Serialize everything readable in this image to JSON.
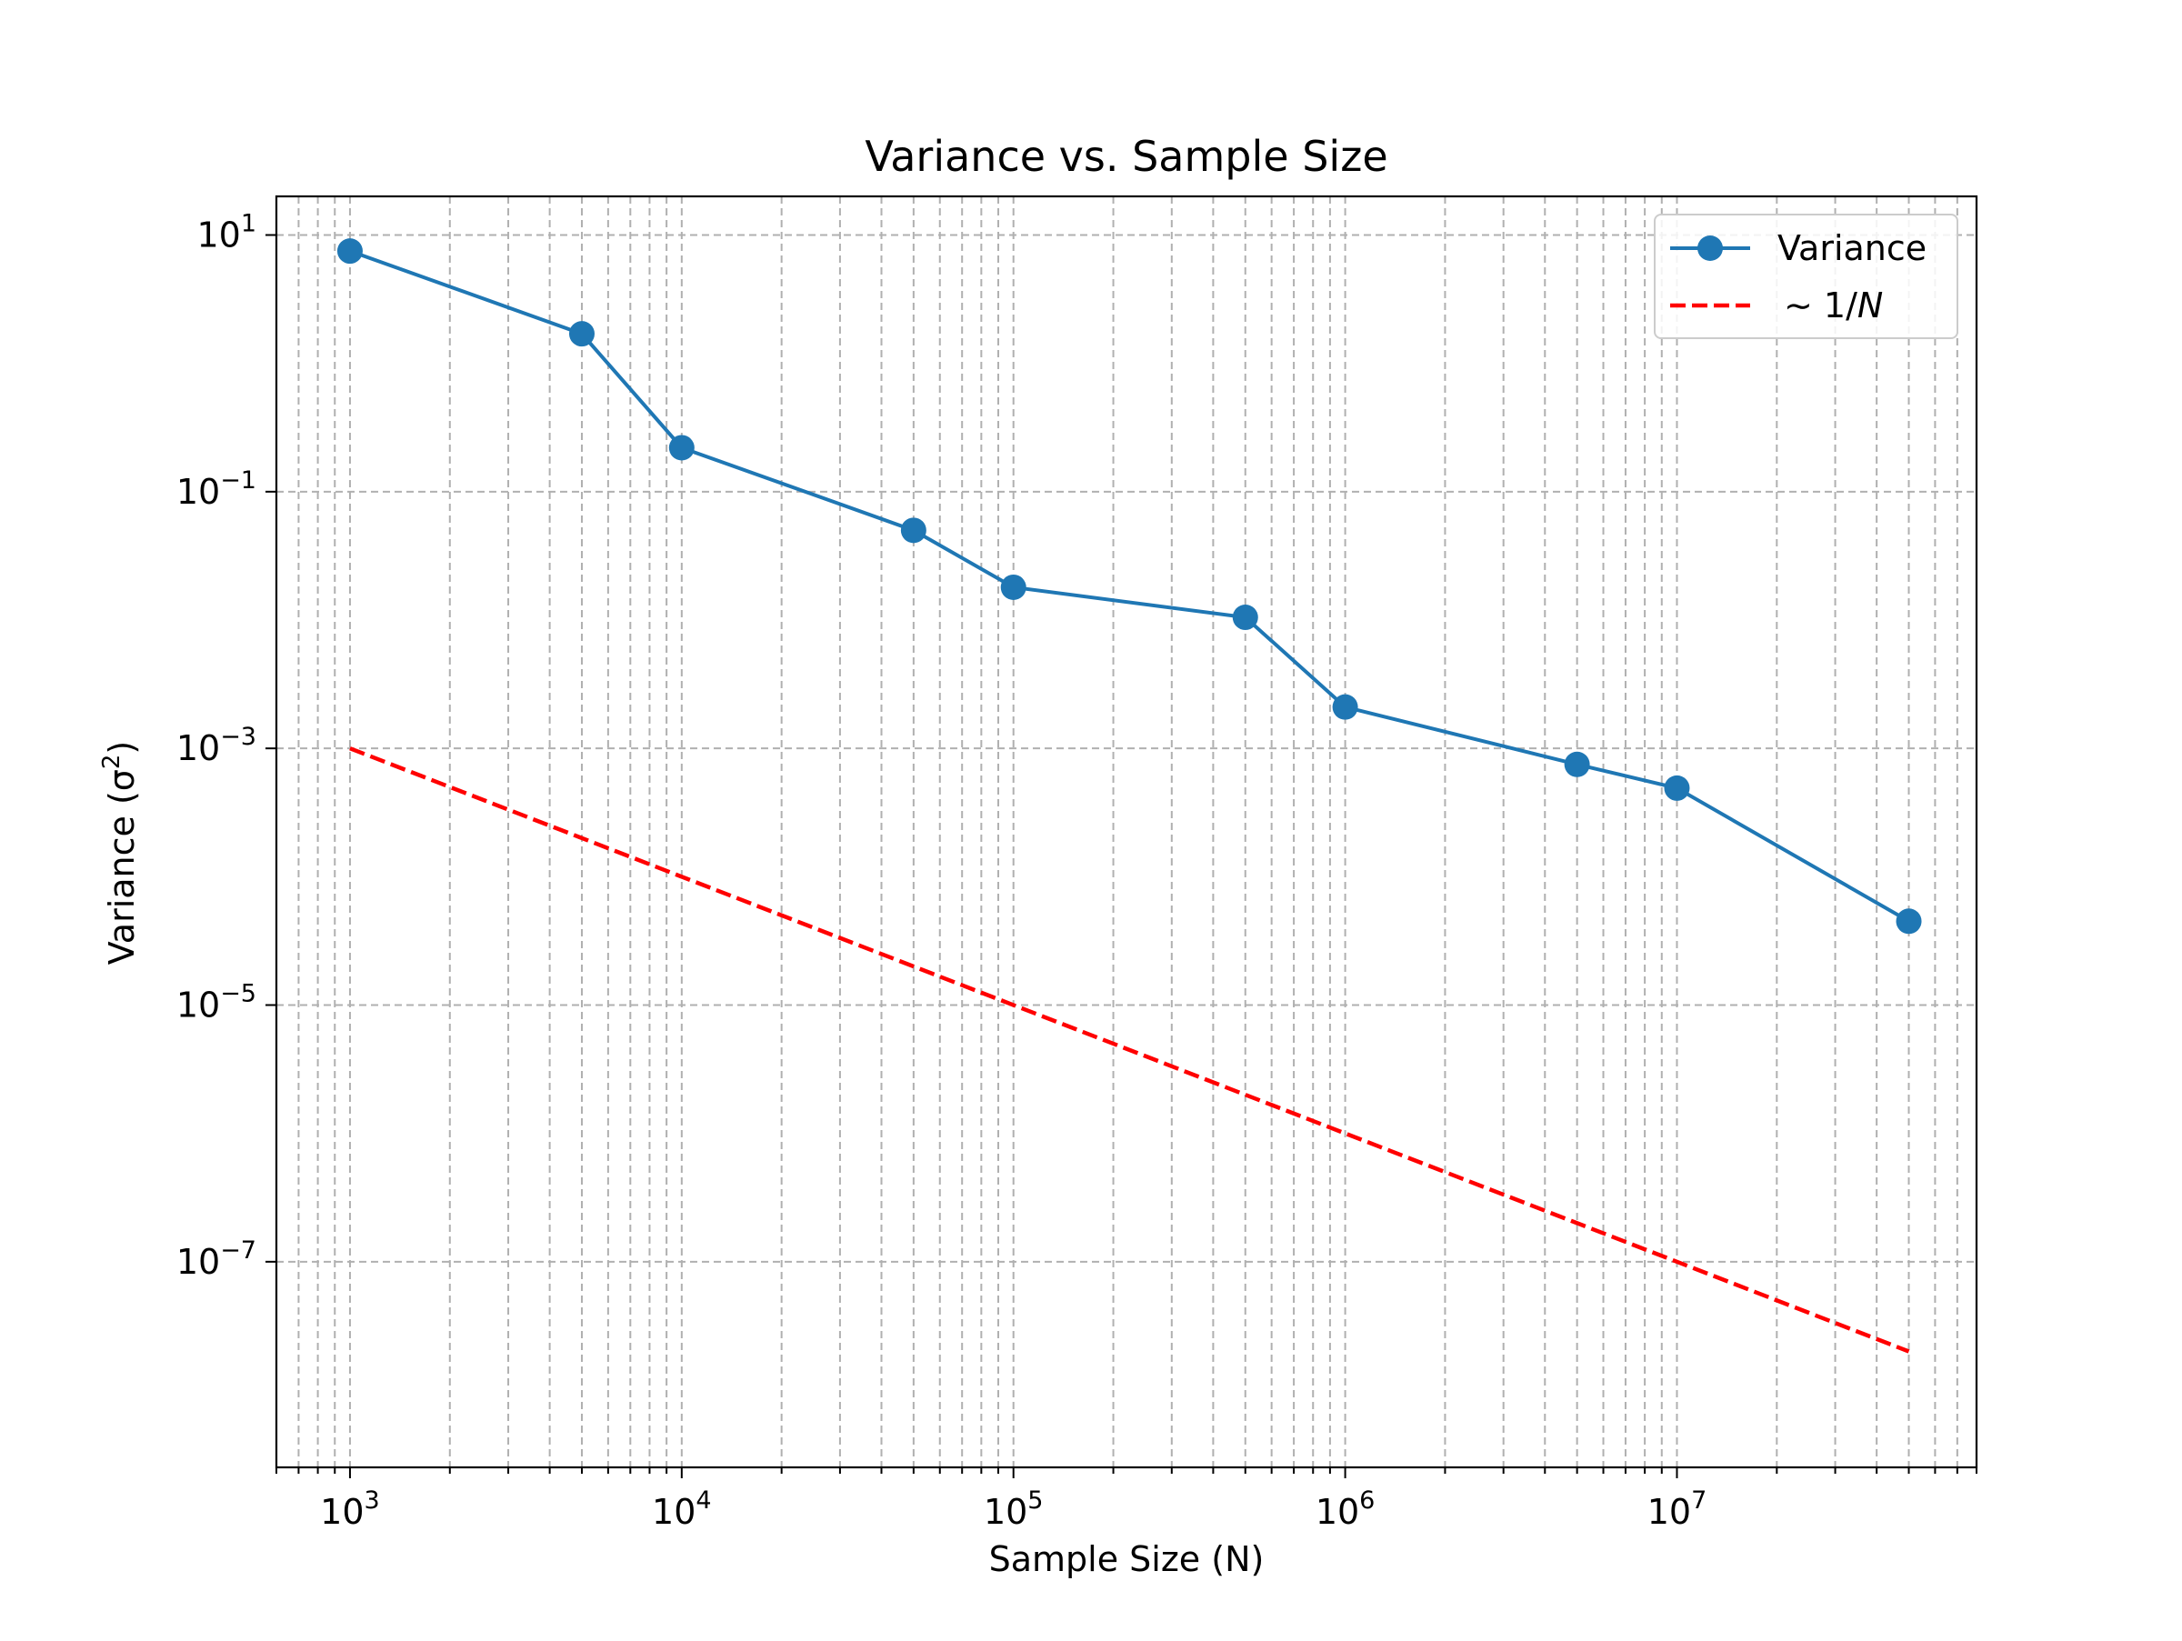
{
  "chart_data": {
    "type": "line",
    "title": "Variance vs. Sample Size",
    "xlabel": "Sample Size (N)",
    "ylabel_main": "Variance (σ",
    "ylabel_sup": "2",
    "ylabel_close": ")",
    "xscale": "log",
    "yscale": "log",
    "xlim": [
      600,
      80000000
    ],
    "ylim": [
      2.5e-09,
      20
    ],
    "x_ticks": [
      {
        "value": 1000,
        "base": "10",
        "exp": "3"
      },
      {
        "value": 10000,
        "base": "10",
        "exp": "4"
      },
      {
        "value": 100000,
        "base": "10",
        "exp": "5"
      },
      {
        "value": 1000000,
        "base": "10",
        "exp": "6"
      },
      {
        "value": 10000000,
        "base": "10",
        "exp": "7"
      }
    ],
    "y_ticks": [
      {
        "value": 10,
        "base": "10",
        "exp": "1"
      },
      {
        "value": 0.1,
        "base": "10",
        "exp": "−1"
      },
      {
        "value": 0.001,
        "base": "10",
        "exp": "−3"
      },
      {
        "value": 1e-05,
        "base": "10",
        "exp": "−5"
      },
      {
        "value": 1e-07,
        "base": "10",
        "exp": "−7"
      }
    ],
    "grid": true,
    "legend_position": "top-right",
    "series": [
      {
        "name": "Variance",
        "style": "solid-markers",
        "color": "#1f77b4",
        "x": [
          1000,
          5000,
          10000,
          50000,
          100000,
          500000,
          1000000,
          5000000,
          10000000,
          50000000
        ],
        "y": [
          7.5,
          1.7,
          0.22,
          0.05,
          0.018,
          0.0105,
          0.0021,
          0.00075,
          0.00049,
          4.5e-05
        ]
      },
      {
        "name_prefix": "∼ 1/",
        "name_italic": "N",
        "style": "dashed",
        "color": "#ff0000",
        "x": [
          1000,
          50000000
        ],
        "y": [
          0.001,
          2e-08
        ]
      }
    ]
  }
}
